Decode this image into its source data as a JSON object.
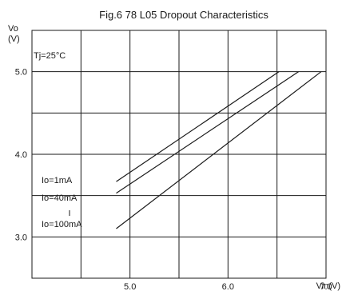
{
  "chart_data": {
    "type": "line",
    "title": "Fig.6 78 L05 Dropout Characteristics",
    "ylabel_line1": "Vo",
    "ylabel_line2": "(V)",
    "xlabel": "Vin(V)",
    "annotation": "Tj=25°C",
    "xlim": [
      4.0,
      7.0
    ],
    "ylim": [
      2.5,
      5.5
    ],
    "x_grid": [
      4.5,
      5.0,
      5.5,
      6.0,
      6.5
    ],
    "y_grid": [
      3.0,
      3.5,
      4.0,
      4.5,
      5.0
    ],
    "x_ticks": [
      {
        "value": 5.0,
        "label": "5.0"
      },
      {
        "value": 6.0,
        "label": "6.0"
      },
      {
        "value": 7.0,
        "label": "7.0"
      }
    ],
    "y_ticks": [
      {
        "value": 3.0,
        "label": "3.0"
      },
      {
        "value": 4.0,
        "label": "4.0"
      },
      {
        "value": 5.0,
        "label": "5.0"
      }
    ],
    "grid": true,
    "series": [
      {
        "name": "Io=1mA",
        "x": [
          4.86,
          6.52
        ],
        "y": [
          3.67,
          5.0
        ]
      },
      {
        "name": "Io=40mA",
        "x": [
          4.86,
          6.72
        ],
        "y": [
          3.53,
          5.0
        ]
      },
      {
        "name": "Io=100mA",
        "x": [
          4.86,
          6.95
        ],
        "y": [
          3.1,
          5.0
        ]
      }
    ]
  },
  "colors": {
    "axis": "#1a1a1a",
    "grid": "#1a1a1a",
    "series": "#1a1a1a"
  }
}
